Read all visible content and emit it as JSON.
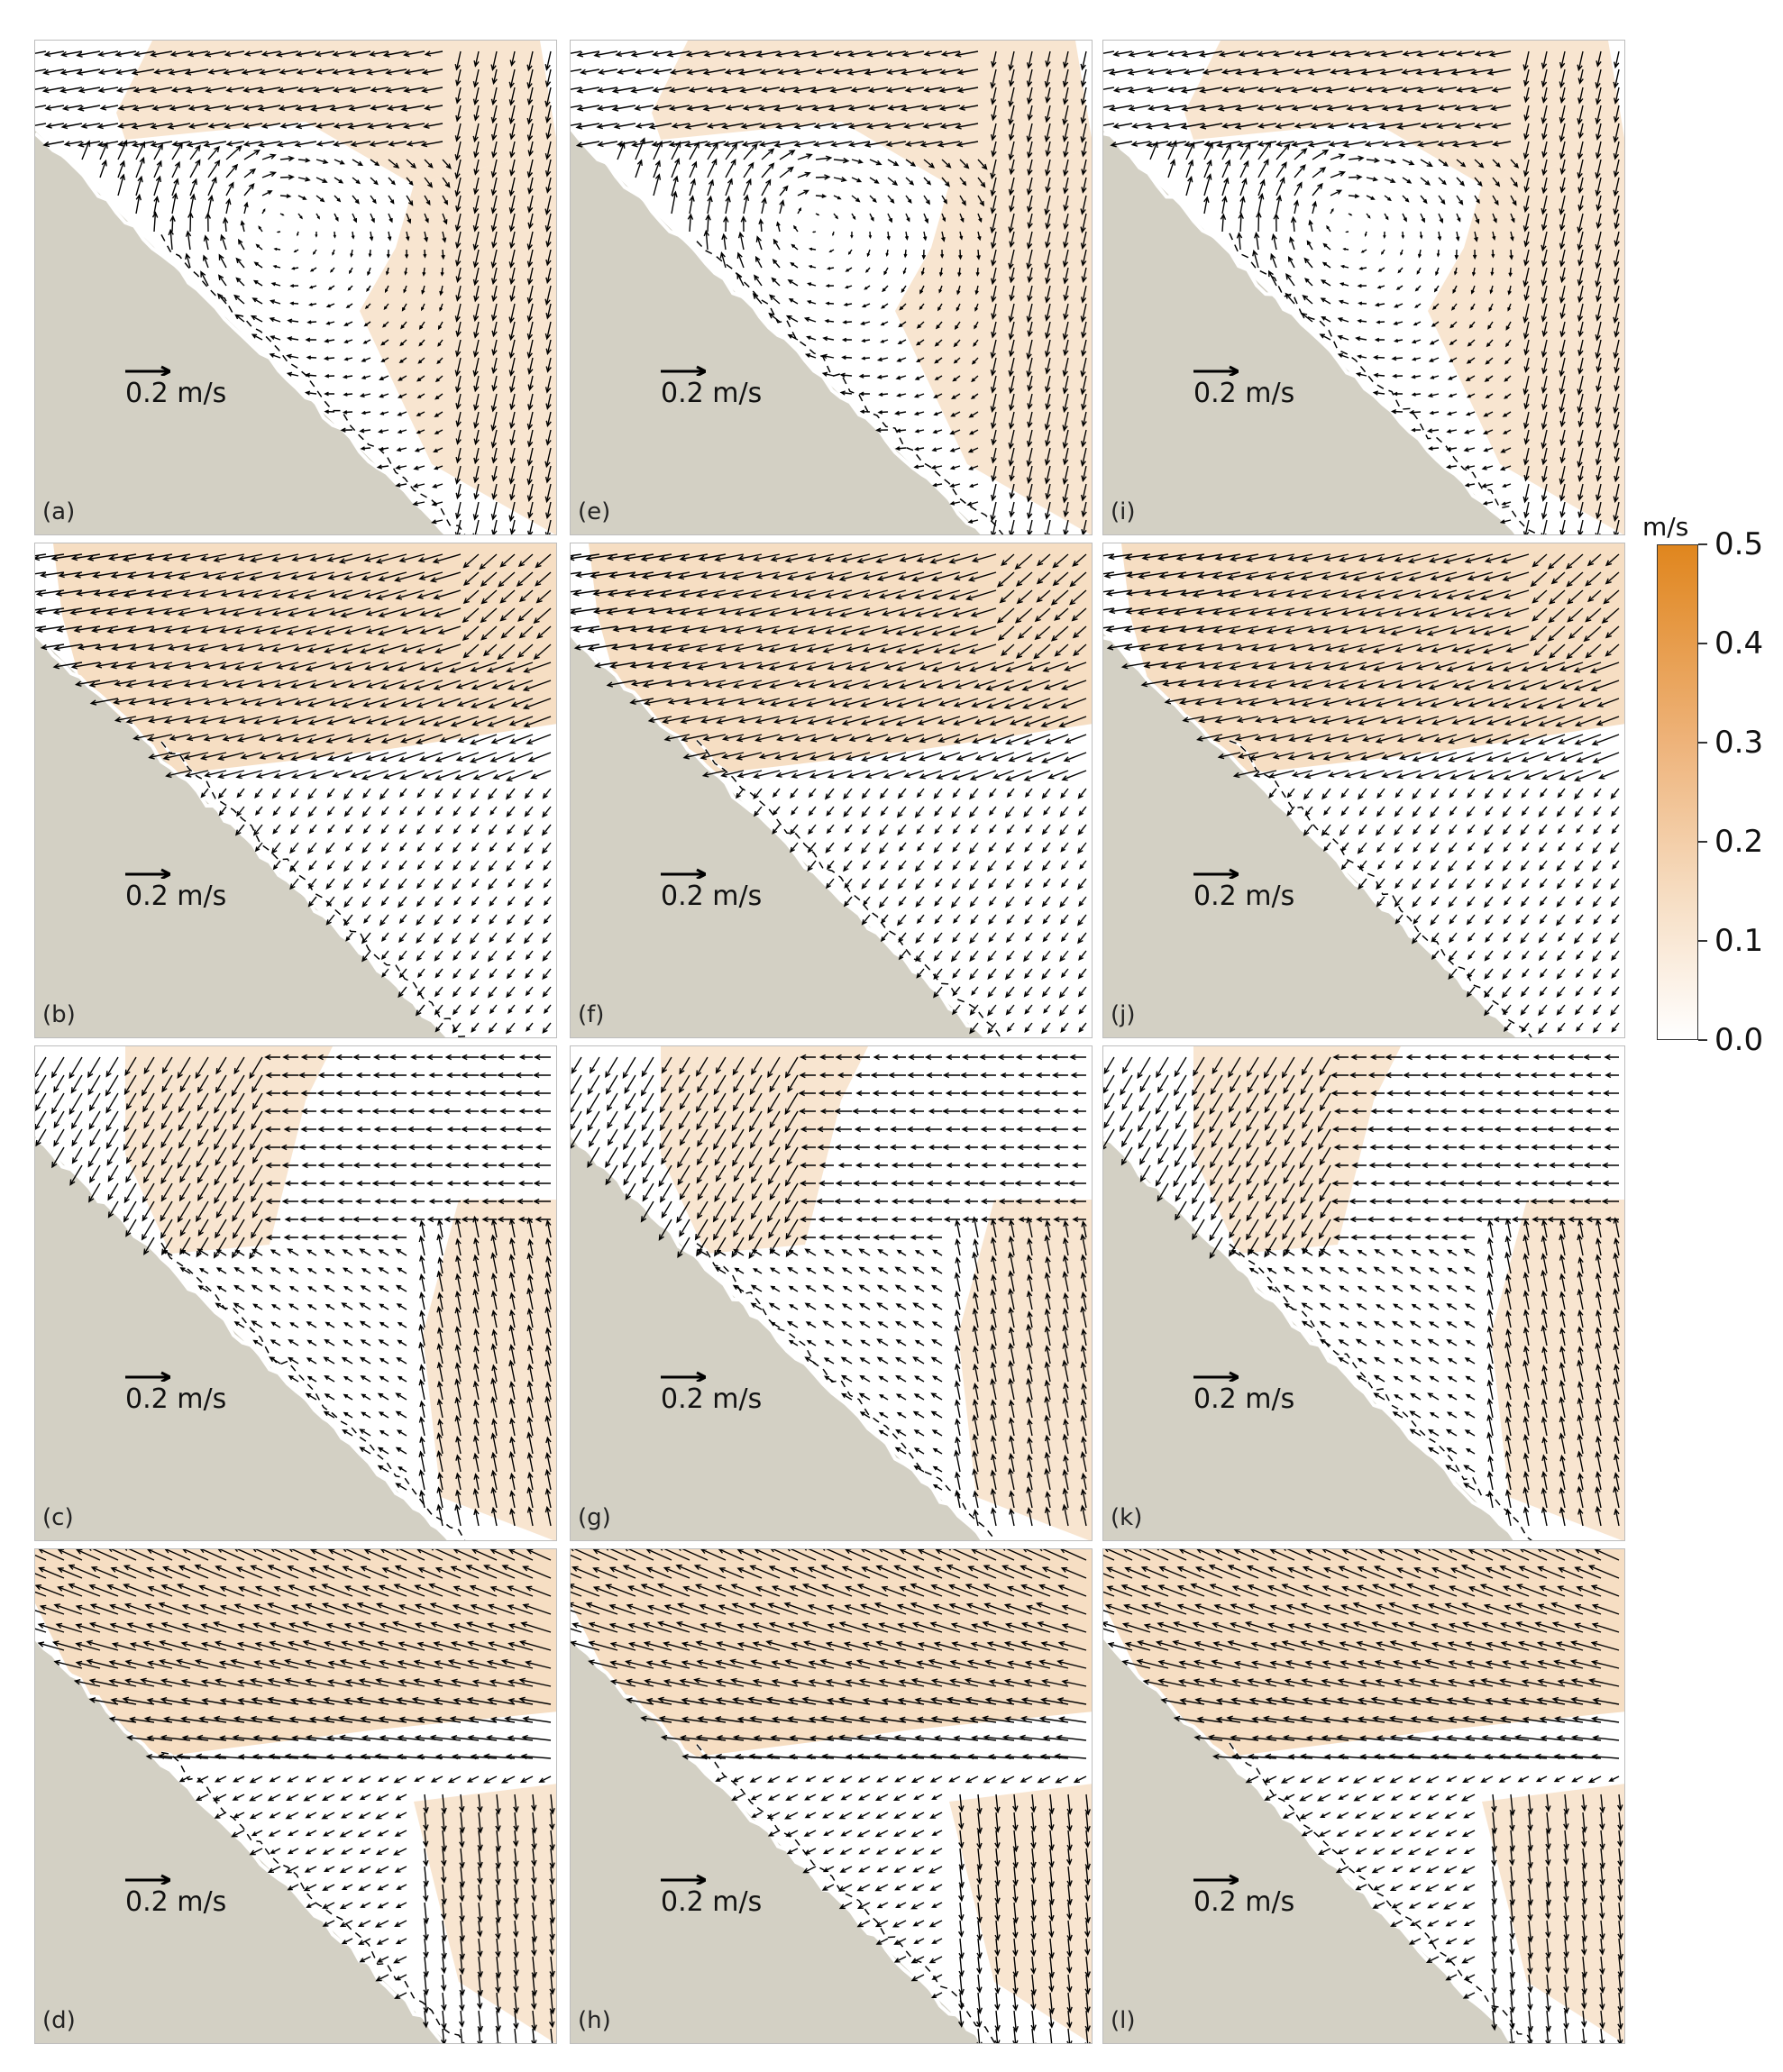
{
  "panels": [
    {
      "label": "(a)",
      "scale_label": "0.2 m/s",
      "flow": "A"
    },
    {
      "label": "(b)",
      "scale_label": "0.2 m/s",
      "flow": "B"
    },
    {
      "label": "(c)",
      "scale_label": "0.2 m/s",
      "flow": "C"
    },
    {
      "label": "(d)",
      "scale_label": "0.2 m/s",
      "flow": "D"
    },
    {
      "label": "(e)",
      "scale_label": "0.2 m/s",
      "flow": "A"
    },
    {
      "label": "(f)",
      "scale_label": "0.2 m/s",
      "flow": "B"
    },
    {
      "label": "(g)",
      "scale_label": "0.2 m/s",
      "flow": "C"
    },
    {
      "label": "(h)",
      "scale_label": "0.2 m/s",
      "flow": "D"
    },
    {
      "label": "(i)",
      "scale_label": "0.2 m/s",
      "flow": "A"
    },
    {
      "label": "(j)",
      "scale_label": "0.2 m/s",
      "flow": "B"
    },
    {
      "label": "(k)",
      "scale_label": "0.2 m/s",
      "flow": "C"
    },
    {
      "label": "(l)",
      "scale_label": "0.2 m/s",
      "flow": "D"
    }
  ],
  "colorbar": {
    "unit": "m/s",
    "ticks": [
      "0.0",
      "0.1",
      "0.2",
      "0.3",
      "0.4",
      "0.5"
    ],
    "min": 0.0,
    "max": 0.5,
    "colors": [
      "#ffffff",
      "#e0861e"
    ]
  },
  "colors": {
    "land": "#d3d0c4",
    "coastline": "#ffffff",
    "arrow": "#000000",
    "speed_high": "#e0861e",
    "speed_low": "#f6dcc0"
  }
}
